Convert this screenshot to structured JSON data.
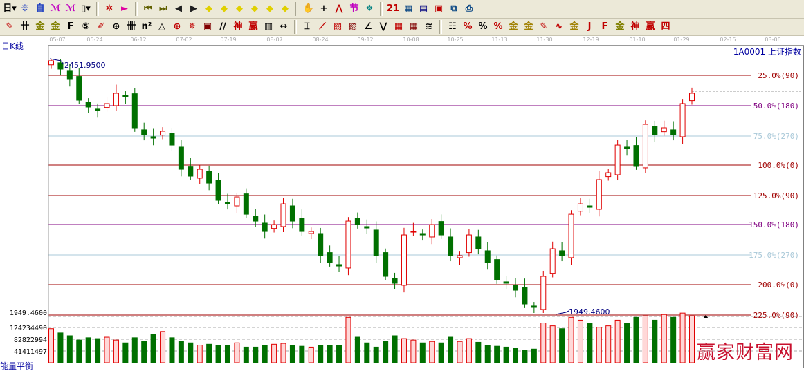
{
  "toolbar1": [
    {
      "name": "period-day-dropdown",
      "glyph": "日▾",
      "color": "#000"
    },
    {
      "name": "chart-type-icon",
      "glyph": "❊",
      "color": "#2040c0"
    },
    {
      "name": "self-select-icon",
      "glyph": "自",
      "color": "#2040c0"
    },
    {
      "name": "indicator-3-icon",
      "glyph": "ℳ",
      "color": "#c000c0"
    },
    {
      "name": "indicator-9-icon",
      "glyph": "ℳ",
      "color": "#c000c0"
    },
    {
      "name": "candle-type-dropdown",
      "glyph": "▯▾",
      "color": "#000"
    },
    {
      "name": "sep"
    },
    {
      "name": "restore-icon",
      "glyph": "✲",
      "color": "#c00000"
    },
    {
      "name": "flag-icon",
      "glyph": "►",
      "color": "#e000a0"
    },
    {
      "name": "sep"
    },
    {
      "name": "first-icon",
      "glyph": "⏮",
      "color": "#606000"
    },
    {
      "name": "last-icon",
      "glyph": "⏭",
      "color": "#606000"
    },
    {
      "name": "scroll-left-icon",
      "glyph": "◀",
      "color": "#202020"
    },
    {
      "name": "scroll-right-icon",
      "glyph": "▶",
      "color": "#202020"
    },
    {
      "name": "zoom-left-icon",
      "glyph": "◆",
      "color": "#e0d000"
    },
    {
      "name": "zoom-right-icon",
      "glyph": "◆",
      "color": "#e0d000"
    },
    {
      "name": "expand-icon",
      "glyph": "◆",
      "color": "#e0d000"
    },
    {
      "name": "shrink-icon",
      "glyph": "◆",
      "color": "#e0d000"
    },
    {
      "name": "compress-icon",
      "glyph": "◆",
      "color": "#e0d000"
    },
    {
      "name": "move-all-icon",
      "glyph": "◆",
      "color": "#e0d000"
    },
    {
      "name": "sep"
    },
    {
      "name": "hand-icon",
      "glyph": "✋",
      "color": "#000"
    },
    {
      "name": "crosshair-icon",
      "glyph": "+",
      "color": "#000"
    },
    {
      "name": "line-icon",
      "glyph": "⋀",
      "color": "#c00000"
    },
    {
      "name": "section-icon",
      "glyph": "节",
      "color": "#c000c0"
    },
    {
      "name": "overlay-icon",
      "glyph": "❖",
      "color": "#008080"
    },
    {
      "name": "sep"
    },
    {
      "name": "calendar-icon",
      "glyph": "21",
      "color": "#c00000"
    },
    {
      "name": "calculator-icon",
      "glyph": "▦",
      "color": "#004080"
    },
    {
      "name": "report-icon",
      "glyph": "▤",
      "color": "#000080"
    },
    {
      "name": "save-icon",
      "glyph": "▣",
      "color": "#c00000"
    },
    {
      "name": "network-icon",
      "glyph": "⧉",
      "color": "#004080"
    },
    {
      "name": "print-icon",
      "glyph": "⎙",
      "color": "#004080"
    }
  ],
  "toolbar2": [
    {
      "name": "pencil-icon",
      "glyph": "✎",
      "color": "#c00000"
    },
    {
      "name": "parallel-icon",
      "glyph": "卄",
      "color": "#000"
    },
    {
      "name": "gold-split-icon",
      "glyph": "金",
      "color": "#808000"
    },
    {
      "name": "gold-split2-icon",
      "glyph": "金",
      "color": "#808000"
    },
    {
      "name": "f-lines-icon",
      "glyph": "F",
      "color": "#000"
    },
    {
      "name": "spiral-icon",
      "glyph": "⑤",
      "color": "#000"
    },
    {
      "name": "pen-icon",
      "glyph": "✐",
      "color": "#c00000"
    },
    {
      "name": "circle-icon",
      "glyph": "⊕",
      "color": "#000"
    },
    {
      "name": "lines-icon",
      "glyph": "卌",
      "color": "#000"
    },
    {
      "name": "n2-icon",
      "glyph": "n²",
      "color": "#000"
    },
    {
      "name": "triangle-icon",
      "glyph": "△",
      "color": "#000"
    },
    {
      "name": "target-icon",
      "glyph": "⊕",
      "color": "#c00000"
    },
    {
      "name": "star-icon",
      "glyph": "✵",
      "color": "#c00000"
    },
    {
      "name": "square-icon",
      "glyph": "▣",
      "color": "#800000"
    },
    {
      "name": "angle-icon",
      "glyph": "∕∕",
      "color": "#000"
    },
    {
      "name": "god-icon",
      "glyph": "神",
      "color": "#c00000"
    },
    {
      "name": "win-icon",
      "glyph": "赢",
      "color": "#c00000"
    },
    {
      "name": "grid-icon",
      "glyph": "▥",
      "color": "#000"
    },
    {
      "name": "measure-icon",
      "glyph": "↔",
      "color": "#000"
    },
    {
      "name": "sep"
    },
    {
      "name": "box-icon",
      "glyph": "⌶",
      "color": "#000"
    },
    {
      "name": "fan-icon",
      "glyph": "⟋",
      "color": "#c00000"
    },
    {
      "name": "box-fan-icon",
      "glyph": "▨",
      "color": "#c00000"
    },
    {
      "name": "box-fan2-icon",
      "glyph": "▧",
      "color": "#800000"
    },
    {
      "name": "angle2-icon",
      "glyph": "∠",
      "color": "#000"
    },
    {
      "name": "v-icon",
      "glyph": "⋁",
      "color": "#000"
    },
    {
      "name": "grid2-icon",
      "glyph": "▦",
      "color": "#c00000"
    },
    {
      "name": "grid3-icon",
      "glyph": "▦",
      "color": "#800000"
    },
    {
      "name": "wave-icon",
      "glyph": "≋",
      "color": "#000"
    },
    {
      "name": "sep"
    },
    {
      "name": "list-icon",
      "glyph": "☷",
      "color": "#000"
    },
    {
      "name": "pct-fan-icon",
      "glyph": "%",
      "color": "#c00000"
    },
    {
      "name": "percent-icon",
      "glyph": "%",
      "color": "#000"
    },
    {
      "name": "pct-lines-icon",
      "glyph": "%",
      "color": "#c00000"
    },
    {
      "name": "gold-circle-icon",
      "glyph": "金",
      "color": "#a08000"
    },
    {
      "name": "gold-lines-icon",
      "glyph": "金",
      "color": "#a08000"
    },
    {
      "name": "bar-pen-icon",
      "glyph": "✎",
      "color": "#c00000"
    },
    {
      "name": "sine-icon",
      "glyph": "∿",
      "color": "#c00000"
    },
    {
      "name": "gold-box-icon",
      "glyph": "金",
      "color": "#a08000"
    },
    {
      "name": "j-fan-icon",
      "glyph": "J",
      "color": "#c00000"
    },
    {
      "name": "f-fan-icon",
      "glyph": "F",
      "color": "#c00000"
    },
    {
      "name": "gold-fan-icon",
      "glyph": "金",
      "color": "#808000"
    },
    {
      "name": "god-fan-icon",
      "glyph": "神",
      "color": "#c00000"
    },
    {
      "name": "win-fan-icon",
      "glyph": "赢",
      "color": "#c00000"
    },
    {
      "name": "four-fan-icon",
      "glyph": "四",
      "color": "#c00000"
    }
  ],
  "date_axis": [
    "05-07",
    "05-24",
    "06-12",
    "07-02",
    "07-19",
    "08-07",
    "08-24",
    "09-12",
    "10-08",
    "10-25",
    "11-13",
    "11-30",
    "12-19",
    "01-10",
    "01-29",
    "02-15",
    "03-06"
  ],
  "header": {
    "period": "日K线",
    "symbol": "1A0001  上证指数"
  },
  "bottom_label": "能量平衡",
  "watermark": "赢家财富网",
  "colors": {
    "up": "#e00000",
    "up_fill": "#ffd8d8",
    "down": "#007000",
    "line_red": "#a00000",
    "line_purple": "#800080",
    "line_blue": "#a8c8d8"
  },
  "chart_data": {
    "type": "candlestick",
    "high_label": "2451.9500",
    "low_label": "1949.4600",
    "left_price_label": "1949.4600",
    "price_range": [
      1949.46,
      2451.95
    ],
    "fib_lines": [
      {
        "label": "25.0%(90)",
        "color": "red"
      },
      {
        "label": "50.0%(180)",
        "color": "purple"
      },
      {
        "label": "75.0%(270)",
        "color": "blue"
      },
      {
        "label": "100.0%(0)",
        "color": "red"
      },
      {
        "label": "125.0%(90)",
        "color": "red"
      },
      {
        "label": "150.0%(180)",
        "color": "purple"
      },
      {
        "label": "175.0%(270)",
        "color": "blue"
      },
      {
        "label": "200.0%(0)",
        "color": "red"
      },
      {
        "label": "225.0%(90)",
        "color": "red"
      }
    ],
    "closes": [
      2447.9,
      2431.5,
      2411.0,
      2370.0,
      2356.4,
      2349.5,
      2363.2,
      2383.7,
      2376.8,
      2315.4,
      2301.7,
      2294.9,
      2308.6,
      2281.2,
      2233.4,
      2219.8,
      2233.4,
      2206.1,
      2172.0,
      2165.1,
      2178.8,
      2144.6,
      2131.0,
      2110.5,
      2124.2,
      2165.1,
      2131.0,
      2110.5,
      2110.5,
      2062.8,
      2049.1,
      2042.3,
      2131.0,
      2124.2,
      2117.4,
      2062.8,
      2021.8,
      2008.2,
      2103.7,
      2110.5,
      2103.7,
      2124.2,
      2103.7,
      2062.8,
      2062.8,
      2103.7,
      2076.4,
      2049.1,
      2015.0,
      2008.2,
      1994.5,
      1967.2,
      1960.4,
      2021.8,
      2076.4,
      2062.8,
      2144.6,
      2165.1,
      2158.3,
      2213.0,
      2226.6,
      2281.2,
      2274.4,
      2240.3,
      2322.2,
      2301.7,
      2315.4,
      2301.7,
      2363.2,
      2383.7
    ],
    "volume_ticks": [
      "124234490",
      "82822994",
      "41411497"
    ],
    "volume_tick_values": [
      124234490,
      82822994,
      41411497
    ],
    "volumes_m": [
      120,
      105,
      95,
      80,
      88,
      85,
      90,
      80,
      70,
      88,
      75,
      100,
      110,
      88,
      75,
      70,
      62,
      65,
      60,
      60,
      70,
      55,
      55,
      60,
      65,
      68,
      60,
      58,
      55,
      60,
      62,
      60,
      160,
      90,
      70,
      55,
      75,
      95,
      85,
      80,
      70,
      75,
      70,
      90,
      75,
      85,
      72,
      60,
      58,
      55,
      50,
      45,
      48,
      140,
      130,
      120,
      160,
      150,
      140,
      125,
      130,
      150,
      140,
      160,
      165,
      150,
      170,
      160,
      175,
      165
    ]
  }
}
